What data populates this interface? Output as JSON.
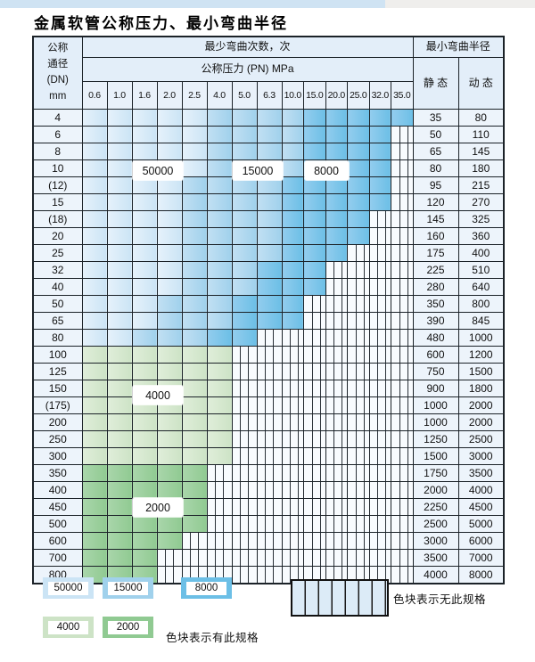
{
  "page": {
    "title": "金属软管公称压力、最小弯曲半径"
  },
  "colors": {
    "zone_50000": "#cbe4f5",
    "zone_15000": "#a0d1ec",
    "zone_8000": "#6cbfe6",
    "zone_4000": "#cde3c6",
    "zone_2000": "#90ca92",
    "hatch_bg": "#f8fbfe",
    "header_bg": "#e3eef9",
    "grid": "#1b2228"
  },
  "table": {
    "header": {
      "dn_lines": [
        "公称",
        "通径",
        "(DN)",
        "mm"
      ],
      "bend_cycles": "最少弯曲次数，次",
      "pressure": "公称压力 (PN) MPa",
      "min_bend_radius": "最小弯曲半径",
      "static": "静 态",
      "dynamic": "动 态",
      "pressures": [
        "0.6",
        "1.0",
        "1.6",
        "2.0",
        "2.5",
        "4.0",
        "5.0",
        "6.3",
        "10.0",
        "15.0",
        "20.0",
        "25.0",
        "32.0",
        "35.0"
      ]
    },
    "rows": [
      {
        "dn": "4",
        "static": "35",
        "dynamic": "80",
        "bands": [
          [
            "b1",
            5
          ],
          [
            "b2",
            9
          ],
          [
            "b3",
            14
          ]
        ]
      },
      {
        "dn": "6",
        "static": "50",
        "dynamic": "110",
        "bands": [
          [
            "b1",
            5
          ],
          [
            "b2",
            9
          ],
          [
            "b3",
            13
          ]
        ]
      },
      {
        "dn": "8",
        "static": "65",
        "dynamic": "145",
        "bands": [
          [
            "b1",
            5
          ],
          [
            "b2",
            9
          ],
          [
            "b3",
            13
          ]
        ]
      },
      {
        "dn": "10",
        "static": "80",
        "dynamic": "180",
        "bands": [
          [
            "b1",
            5
          ],
          [
            "b2",
            9
          ],
          [
            "b3",
            13
          ]
        ]
      },
      {
        "dn": "(12)",
        "static": "95",
        "dynamic": "215",
        "bands": [
          [
            "b1",
            4
          ],
          [
            "b2",
            8
          ],
          [
            "b3",
            13
          ]
        ]
      },
      {
        "dn": "15",
        "static": "120",
        "dynamic": "270",
        "bands": [
          [
            "b1",
            4
          ],
          [
            "b2",
            8
          ],
          [
            "b3",
            13
          ]
        ]
      },
      {
        "dn": "(18)",
        "static": "145",
        "dynamic": "325",
        "bands": [
          [
            "b1",
            4
          ],
          [
            "b2",
            8
          ],
          [
            "b3",
            12
          ]
        ]
      },
      {
        "dn": "20",
        "static": "160",
        "dynamic": "360",
        "bands": [
          [
            "b1",
            4
          ],
          [
            "b2",
            8
          ],
          [
            "b3",
            12
          ]
        ]
      },
      {
        "dn": "25",
        "static": "175",
        "dynamic": "400",
        "bands": [
          [
            "b1",
            4
          ],
          [
            "b2",
            8
          ],
          [
            "b3",
            11
          ]
        ]
      },
      {
        "dn": "32",
        "static": "225",
        "dynamic": "510",
        "bands": [
          [
            "b1",
            4
          ],
          [
            "b2",
            7
          ],
          [
            "b3",
            10
          ]
        ]
      },
      {
        "dn": "40",
        "static": "280",
        "dynamic": "640",
        "bands": [
          [
            "b1",
            4
          ],
          [
            "b2",
            7
          ],
          [
            "b3",
            10
          ]
        ]
      },
      {
        "dn": "50",
        "static": "350",
        "dynamic": "800",
        "bands": [
          [
            "b1",
            3
          ],
          [
            "b2",
            6
          ],
          [
            "b3",
            9
          ]
        ]
      },
      {
        "dn": "65",
        "static": "390",
        "dynamic": "845",
        "bands": [
          [
            "b1",
            3
          ],
          [
            "b2",
            6
          ],
          [
            "b3",
            9
          ]
        ]
      },
      {
        "dn": "80",
        "static": "480",
        "dynamic": "1000",
        "bands": [
          [
            "b1",
            2
          ],
          [
            "b2",
            5
          ],
          [
            "b3",
            7
          ]
        ]
      },
      {
        "dn": "100",
        "static": "600",
        "dynamic": "1200",
        "bands": [
          [
            "g1",
            6
          ]
        ]
      },
      {
        "dn": "125",
        "static": "750",
        "dynamic": "1500",
        "bands": [
          [
            "g1",
            6
          ]
        ]
      },
      {
        "dn": "150",
        "static": "900",
        "dynamic": "1800",
        "bands": [
          [
            "g1",
            6
          ]
        ]
      },
      {
        "dn": "(175)",
        "static": "1000",
        "dynamic": "2000",
        "bands": [
          [
            "g1",
            6
          ]
        ]
      },
      {
        "dn": "200",
        "static": "1000",
        "dynamic": "2000",
        "bands": [
          [
            "g1",
            6
          ]
        ]
      },
      {
        "dn": "250",
        "static": "1250",
        "dynamic": "2500",
        "bands": [
          [
            "g1",
            6
          ]
        ]
      },
      {
        "dn": "300",
        "static": "1500",
        "dynamic": "3000",
        "bands": [
          [
            "g1",
            6
          ]
        ]
      },
      {
        "dn": "350",
        "static": "1750",
        "dynamic": "3500",
        "bands": [
          [
            "g2",
            5
          ]
        ]
      },
      {
        "dn": "400",
        "static": "2000",
        "dynamic": "4000",
        "bands": [
          [
            "g2",
            5
          ]
        ]
      },
      {
        "dn": "450",
        "static": "2250",
        "dynamic": "4500",
        "bands": [
          [
            "g2",
            5
          ]
        ]
      },
      {
        "dn": "500",
        "static": "2500",
        "dynamic": "5000",
        "bands": [
          [
            "g2",
            5
          ]
        ]
      },
      {
        "dn": "600",
        "static": "3000",
        "dynamic": "6000",
        "bands": [
          [
            "g2",
            4
          ]
        ]
      },
      {
        "dn": "700",
        "static": "3500",
        "dynamic": "7000",
        "bands": [
          [
            "g2",
            3
          ]
        ]
      },
      {
        "dn": "800",
        "static": "4000",
        "dynamic": "8000",
        "bands": [
          [
            "g2",
            3
          ]
        ]
      }
    ]
  },
  "overlays": [
    {
      "text": "50000",
      "col_start": 3,
      "col_end": 4,
      "after_row": 4
    },
    {
      "text": "15000",
      "col_start": 7,
      "col_end": 8,
      "after_row": 4
    },
    {
      "text": "8000",
      "col_start": 10,
      "col_end": 11,
      "after_row": 4
    },
    {
      "text": "4000",
      "col_start": 3,
      "col_end": 4,
      "after_row": 18
    },
    {
      "text": "2000",
      "col_start": 3,
      "col_end": 4,
      "after_row": 25
    }
  ],
  "legend": {
    "has_spec": [
      {
        "label": "50000",
        "color": "b1"
      },
      {
        "label": "15000",
        "color": "b2"
      },
      {
        "label": "8000",
        "color": "b3"
      },
      {
        "label": "4000",
        "color": "g1"
      },
      {
        "label": "2000",
        "color": "g2"
      }
    ],
    "has_spec_text": "色块表示有此规格",
    "no_spec_text": "色块表示无此规格"
  }
}
